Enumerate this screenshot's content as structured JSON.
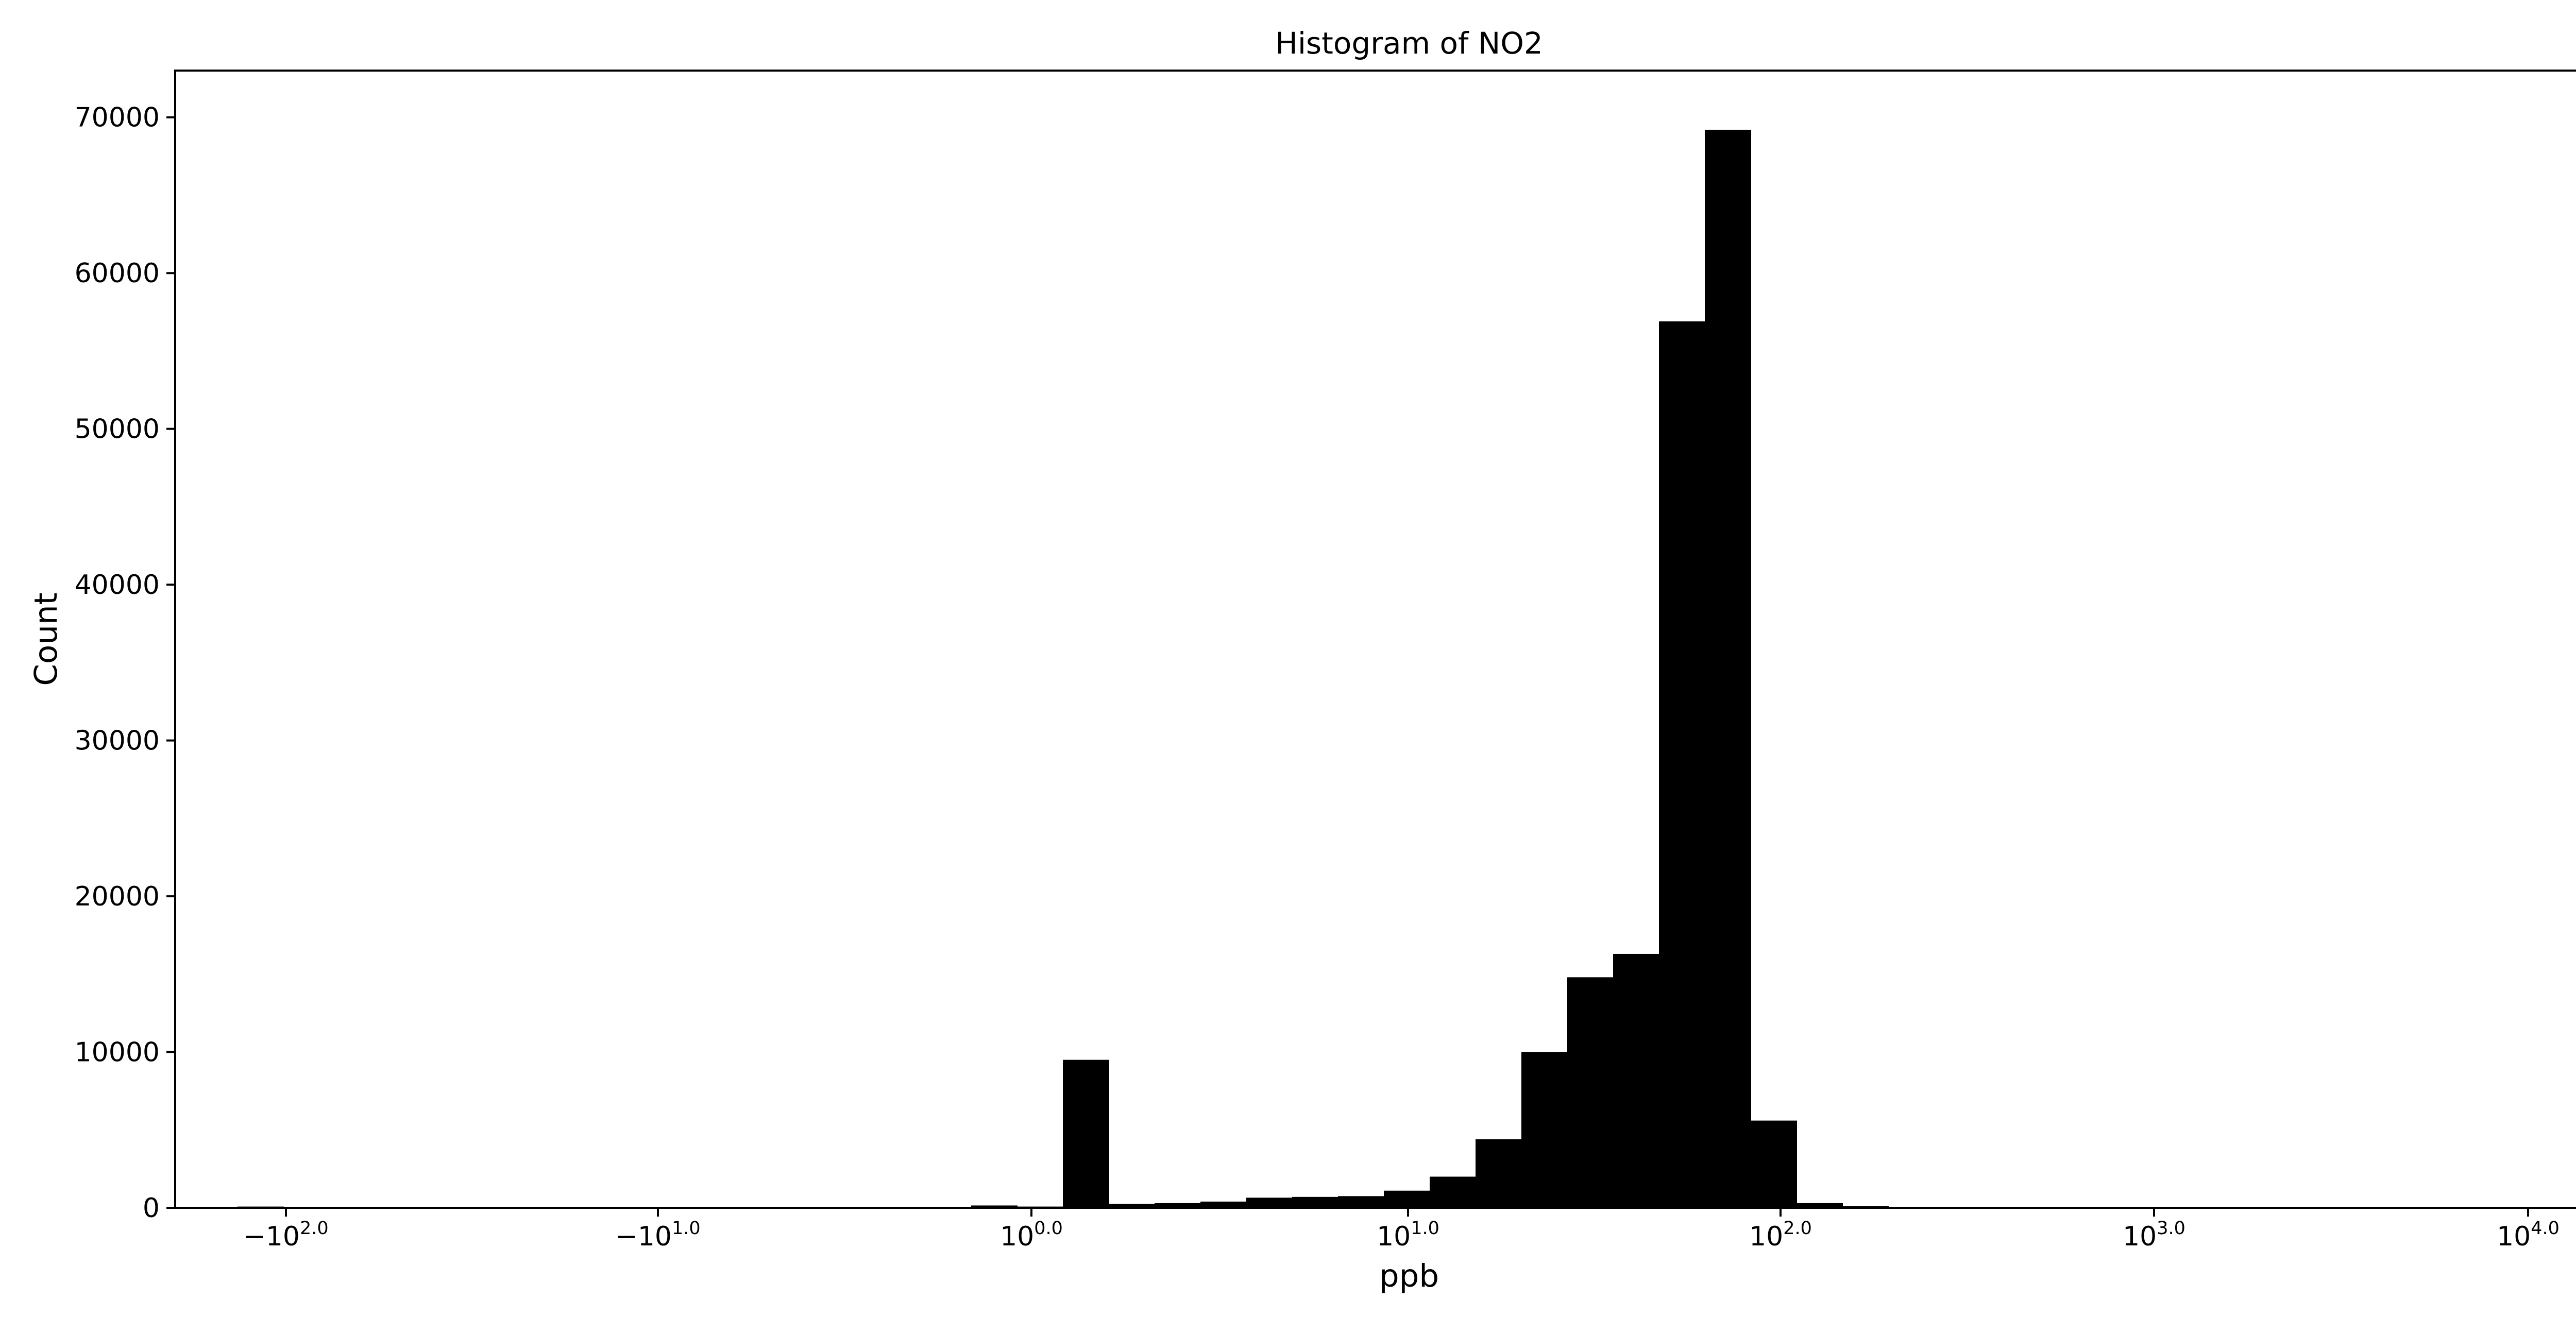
{
  "chart_data": {
    "type": "bar",
    "title": "Histogram of NO2",
    "xlabel": "ppb",
    "ylabel": "Count",
    "x_scale": "symlog",
    "ylim": [
      0,
      73000
    ],
    "y_ticks": [
      0,
      10000,
      20000,
      30000,
      40000,
      50000,
      60000,
      70000
    ],
    "x_ticks": [
      {
        "base": "−10",
        "exp": "2.0"
      },
      {
        "base": "−10",
        "exp": "1.0"
      },
      {
        "base": "10",
        "exp": "0.0"
      },
      {
        "base": "10",
        "exp": "1.0"
      },
      {
        "base": "10",
        "exp": "2.0"
      },
      {
        "base": "10",
        "exp": "3.0"
      },
      {
        "base": "10",
        "exp": "4.0"
      }
    ],
    "legend": "top-right, empty",
    "grid": false,
    "bar_color": "#000000",
    "bins": [
      {
        "i": 0,
        "count": 80
      },
      {
        "i": 7,
        "count": 60
      },
      {
        "i": 8,
        "count": 60
      },
      {
        "i": 9,
        "count": 60
      },
      {
        "i": 12,
        "count": 40
      },
      {
        "i": 13,
        "count": 40
      },
      {
        "i": 14,
        "count": 40
      },
      {
        "i": 15,
        "count": 40
      },
      {
        "i": 16,
        "count": 150
      },
      {
        "i": 17,
        "count": 80
      },
      {
        "i": 18,
        "count": 9500
      },
      {
        "i": 19,
        "count": 250
      },
      {
        "i": 20,
        "count": 300
      },
      {
        "i": 21,
        "count": 400
      },
      {
        "i": 22,
        "count": 650
      },
      {
        "i": 23,
        "count": 700
      },
      {
        "i": 24,
        "count": 750
      },
      {
        "i": 25,
        "count": 1100
      },
      {
        "i": 26,
        "count": 2000
      },
      {
        "i": 27,
        "count": 4400
      },
      {
        "i": 28,
        "count": 10000
      },
      {
        "i": 29,
        "count": 14800
      },
      {
        "i": 30,
        "count": 16300
      },
      {
        "i": 31,
        "count": 56900
      },
      {
        "i": 32,
        "count": 69200
      },
      {
        "i": 33,
        "count": 5600
      },
      {
        "i": 34,
        "count": 300
      },
      {
        "i": 35,
        "count": 100
      },
      {
        "i": 36,
        "count": 40
      },
      {
        "i": 37,
        "count": 40
      },
      {
        "i": 38,
        "count": 40
      },
      {
        "i": 39,
        "count": 40
      },
      {
        "i": 40,
        "count": 30
      },
      {
        "i": 44,
        "count": 40
      }
    ]
  }
}
